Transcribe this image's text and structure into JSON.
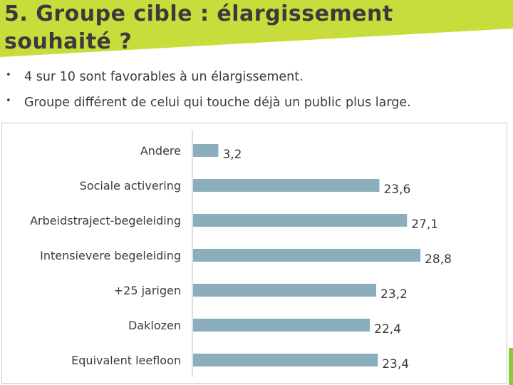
{
  "slide": {
    "title_line1": "5. Groupe cible : élargissement",
    "title_line2": "souhaité ?",
    "bullets": [
      "4 sur 10 sont favorables à un élargissement.",
      "Groupe différent de celui qui touche déjà un public plus large."
    ]
  },
  "colors": {
    "banner": "#c8dc3c",
    "bar": "#8aaebb",
    "accent": "#8dc63f"
  },
  "chart_data": {
    "type": "bar",
    "orientation": "horizontal",
    "categories": [
      "Andere",
      "Sociale activering",
      "Arbeidstraject-begeleiding",
      "Intensievere begeleiding",
      "+25 jarigen",
      "Daklozen",
      "Equivalent leefloon"
    ],
    "values": [
      3.2,
      23.6,
      27.1,
      28.8,
      23.2,
      22.4,
      23.4
    ],
    "value_labels": [
      "3,2",
      "23,6",
      "27,1",
      "28,8",
      "23,2",
      "22,4",
      "23,4"
    ],
    "xlim": [
      0,
      38
    ],
    "grid": false,
    "legend": "none"
  }
}
